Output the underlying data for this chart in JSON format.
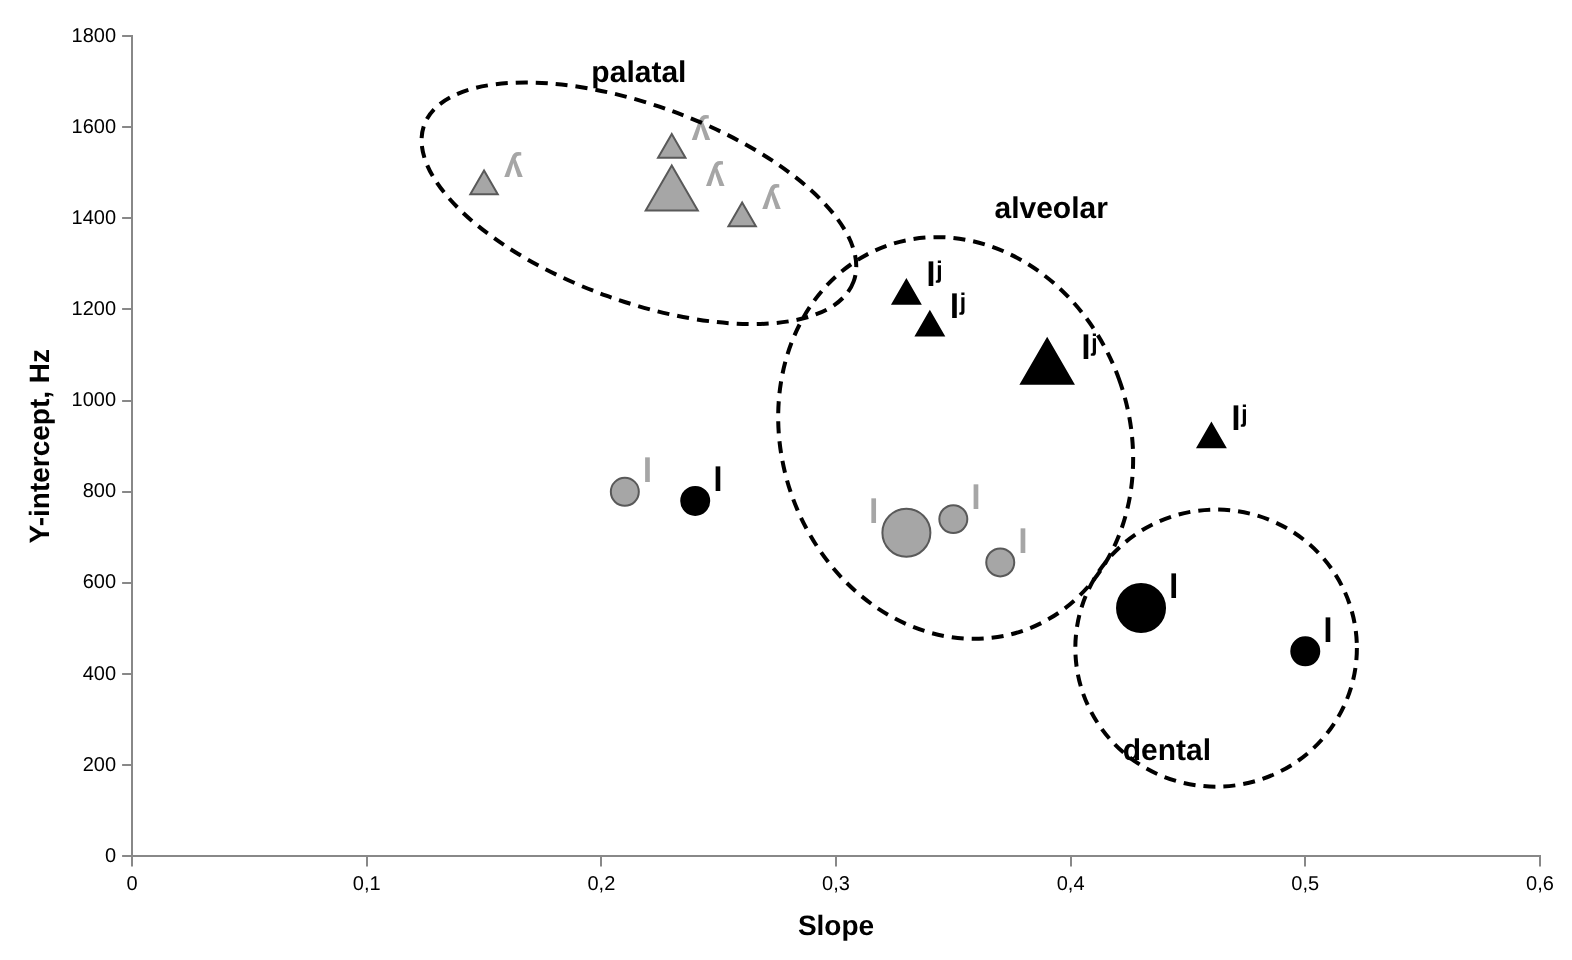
{
  "chart_data": {
    "type": "bubble",
    "xlabel": "Slope",
    "ylabel": "Y-intercept, Hz",
    "xlim": [
      0,
      0.6
    ],
    "xticks": [
      0,
      {
        "value": 0.1,
        "label": "0,1"
      },
      {
        "value": 0.2,
        "label": "0,2"
      },
      {
        "value": 0.3,
        "label": "0,3"
      },
      {
        "value": 0.4,
        "label": "0,4"
      },
      {
        "value": 0.5,
        "label": "0,5"
      },
      {
        "value": 0.6,
        "label": "0,6"
      }
    ],
    "ylim": [
      0,
      1800
    ],
    "yticks": [
      0,
      200,
      400,
      600,
      800,
      1000,
      1200,
      1400,
      1600,
      1800
    ],
    "grid": false,
    "legend": false,
    "series": [
      {
        "marker": "triangle",
        "color": "#a6a6a6",
        "x": [
          0.15,
          0.23,
          0.23,
          0.26
        ],
        "values": [
          1470,
          1550,
          1450,
          1400
        ],
        "sizes": [
          0.18,
          0.18,
          0.65,
          0.18
        ]
      },
      {
        "marker": "triangle",
        "color": "#000000",
        "x": [
          0.33,
          0.34,
          0.39,
          0.46
        ],
        "values": [
          1230,
          1160,
          1070,
          915
        ],
        "sizes": [
          0.18,
          0.18,
          0.65,
          0.18
        ]
      },
      {
        "marker": "circle",
        "color": "#a6a6a6",
        "x": [
          0.21,
          0.33,
          0.35,
          0.37
        ],
        "values": [
          800,
          710,
          740,
          645
        ],
        "sizes": [
          0.34,
          1,
          0.34,
          0.34
        ]
      },
      {
        "marker": "circle",
        "color": "#000000",
        "x": [
          0.24,
          0.43,
          0.5
        ],
        "values": [
          780,
          545,
          450
        ],
        "sizes": [
          0.34,
          1,
          0.34
        ]
      }
    ],
    "annotations": [
      "palatal",
      "alveolar",
      "dental",
      {
        "text": "ʎ",
        "x": 0.15,
        "y": 1470
      },
      {
        "text": "ʎ",
        "x": 0.23,
        "y": 1550
      },
      {
        "text": "ʎ",
        "x": 0.23,
        "y": 1450
      },
      {
        "text": "ʎ",
        "x": 0.26,
        "y": 1400
      },
      {
        "text": "lʲ",
        "x": 0.33,
        "y": 1230
      },
      {
        "text": "lʲ",
        "x": 0.34,
        "y": 1160
      },
      {
        "text": "lʲ",
        "x": 0.39,
        "y": 1070
      },
      {
        "text": "lʲ",
        "x": 0.46,
        "y": 915
      },
      {
        "text": "l",
        "x": 0.21,
        "y": 800
      },
      {
        "text": "l",
        "x": 0.33,
        "y": 710
      },
      {
        "text": "l",
        "x": 0.35,
        "y": 740
      },
      {
        "text": "l",
        "x": 0.37,
        "y": 645
      },
      {
        "text": "l",
        "x": 0.24,
        "y": 780
      },
      {
        "text": "l",
        "x": 0.43,
        "y": 545
      },
      {
        "text": "l",
        "x": 0.5,
        "y": 450
      }
    ]
  }
}
